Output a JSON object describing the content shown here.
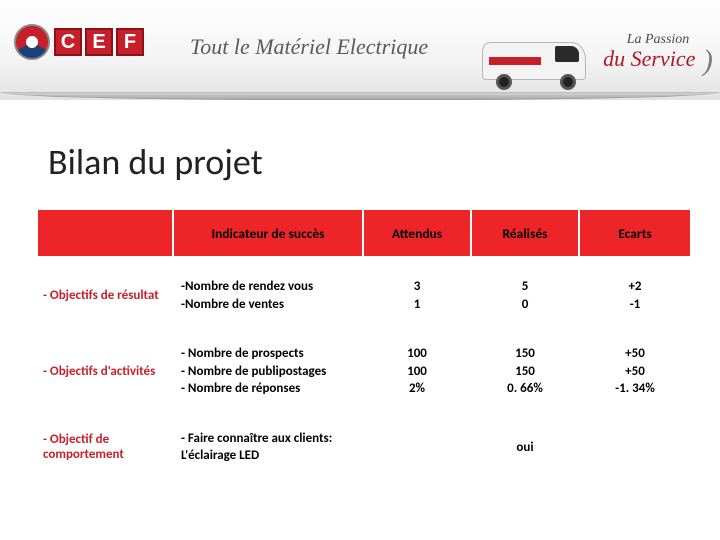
{
  "banner": {
    "logo_letters": [
      "C",
      "E",
      "F"
    ],
    "tagline": "Tout le Matériel Electrique",
    "passion_line1": "La Passion",
    "passion_prefix": "du ",
    "passion_line2": "Service"
  },
  "slide": {
    "title": "Bilan du projet"
  },
  "table": {
    "headers": {
      "indicator": "Indicateur de succès",
      "expected": "Attendus",
      "actual": "Réalisés",
      "gap": "Ecarts"
    },
    "rows": [
      {
        "label": "- Objectifs de résultat",
        "indicator_lines": [
          "-Nombre de rendez vous",
          "-Nombre de ventes"
        ],
        "expected_lines": [
          "3",
          "1"
        ],
        "actual_lines": [
          "5",
          "0"
        ],
        "gap_lines": [
          "+2",
          "-1"
        ]
      },
      {
        "label": "- Objectifs d'activités",
        "indicator_lines": [
          "- Nombre de prospects",
          "- Nombre de publipostages",
          "- Nombre de réponses"
        ],
        "expected_lines": [
          "100",
          "100",
          "2%"
        ],
        "actual_lines": [
          "150",
          "150",
          "0. 66%"
        ],
        "gap_lines": [
          "+50",
          "+50",
          "-1. 34%"
        ]
      },
      {
        "label": "- Objectif de comportement",
        "indicator_lines": [
          "- Faire connaître aux clients:",
          "L'éclairage LED"
        ],
        "expected_lines": [],
        "actual_lines": [
          "oui"
        ],
        "gap_lines": []
      }
    ]
  },
  "colors": {
    "header_bg": "#ed2428",
    "rowhead_text": "#c6202a",
    "page_bg": "#ffffff"
  }
}
